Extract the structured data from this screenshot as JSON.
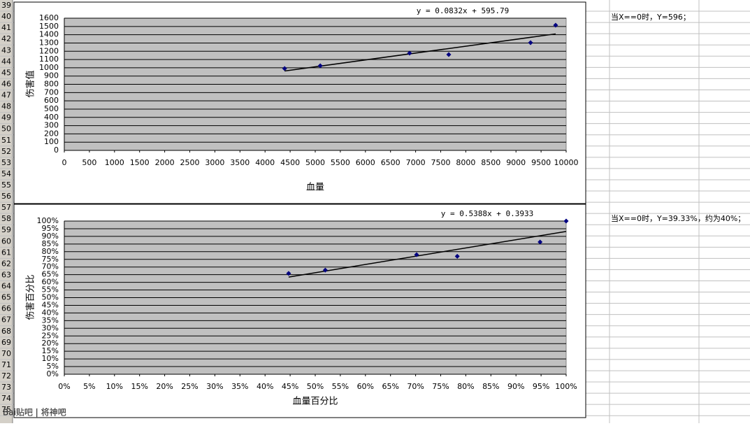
{
  "row_numbers": [
    39,
    40,
    41,
    42,
    43,
    44,
    45,
    46,
    47,
    48,
    49,
    50,
    51,
    52,
    53,
    54,
    55,
    56,
    57,
    58,
    59,
    60,
    61,
    62,
    63,
    64,
    65,
    66,
    67,
    68,
    69,
    70,
    71,
    72,
    73,
    74,
    75
  ],
  "notes": [
    "当X==0时，Y=596；",
    "当X==0时，Y=39.33%，约为40%；"
  ],
  "watermark": "Bai贴吧 | 将神吧",
  "chart_data": [
    {
      "type": "scatter",
      "xlabel": "血量",
      "ylabel": "伤害值",
      "color": "#000080",
      "grid": true,
      "x": [
        4390,
        5100,
        6880,
        7660,
        9290,
        9790
      ],
      "values": [
        990,
        1024,
        1177,
        1160,
        1304,
        1515
      ],
      "xlim": [
        0,
        10000
      ],
      "xticks": [
        0,
        500,
        1000,
        1500,
        2000,
        2500,
        3000,
        3500,
        4000,
        4500,
        5000,
        5500,
        6000,
        6500,
        7000,
        7500,
        8000,
        8500,
        9000,
        9500,
        10000
      ],
      "ylim": [
        0,
        1600
      ],
      "yticks": [
        0,
        100,
        200,
        300,
        400,
        500,
        600,
        700,
        800,
        900,
        1000,
        1100,
        1200,
        1300,
        1400,
        1500,
        1600
      ],
      "trendline": {
        "label": "y = 0.0832x + 595.79",
        "x": [
          4390,
          9790
        ],
        "y": [
          961,
          1410
        ]
      }
    },
    {
      "type": "scatter",
      "xlabel": "血量百分比",
      "ylabel": "伤害百分比",
      "color": "#000080",
      "grid": true,
      "x": [
        44.7,
        52,
        70.2,
        78.3,
        94.8,
        100
      ],
      "values": [
        65.8,
        68,
        78,
        77,
        86.3,
        100
      ],
      "xlim": [
        0,
        100
      ],
      "xticks": [
        {
          "value": 0,
          "label": "0%"
        },
        {
          "value": 5,
          "label": "5%"
        },
        {
          "value": 10,
          "label": "10%"
        },
        {
          "value": 15,
          "label": "15%"
        },
        {
          "value": 20,
          "label": "20%"
        },
        {
          "value": 25,
          "label": "25%"
        },
        {
          "value": 30,
          "label": "30%"
        },
        {
          "value": 35,
          "label": "35%"
        },
        {
          "value": 40,
          "label": "40%"
        },
        {
          "value": 45,
          "label": "45%"
        },
        {
          "value": 50,
          "label": "50%"
        },
        {
          "value": 55,
          "label": "55%"
        },
        {
          "value": 60,
          "label": "60%"
        },
        {
          "value": 65,
          "label": "65%"
        },
        {
          "value": 70,
          "label": "70%"
        },
        {
          "value": 75,
          "label": "75%"
        },
        {
          "value": 80,
          "label": "80%"
        },
        {
          "value": 85,
          "label": "85%"
        },
        {
          "value": 90,
          "label": "90%"
        },
        {
          "value": 95,
          "label": "95%"
        },
        {
          "value": 100,
          "label": "100%"
        }
      ],
      "ylim": [
        0,
        100
      ],
      "yticks": [
        {
          "value": 0,
          "label": "0%"
        },
        {
          "value": 5,
          "label": "5%"
        },
        {
          "value": 10,
          "label": "10%"
        },
        {
          "value": 15,
          "label": "15%"
        },
        {
          "value": 20,
          "label": "20%"
        },
        {
          "value": 25,
          "label": "25%"
        },
        {
          "value": 30,
          "label": "30%"
        },
        {
          "value": 35,
          "label": "35%"
        },
        {
          "value": 40,
          "label": "40%"
        },
        {
          "value": 45,
          "label": "45%"
        },
        {
          "value": 50,
          "label": "50%"
        },
        {
          "value": 55,
          "label": "55%"
        },
        {
          "value": 60,
          "label": "60%"
        },
        {
          "value": 65,
          "label": "65%"
        },
        {
          "value": 70,
          "label": "70%"
        },
        {
          "value": 75,
          "label": "75%"
        },
        {
          "value": 80,
          "label": "80%"
        },
        {
          "value": 85,
          "label": "85%"
        },
        {
          "value": 90,
          "label": "90%"
        },
        {
          "value": 95,
          "label": "95%"
        },
        {
          "value": 100,
          "label": "100%"
        }
      ],
      "trendline": {
        "label": "y = 0.5388x + 0.3933",
        "x": [
          44.7,
          100
        ],
        "y": [
          63.4,
          93.2
        ]
      }
    }
  ]
}
